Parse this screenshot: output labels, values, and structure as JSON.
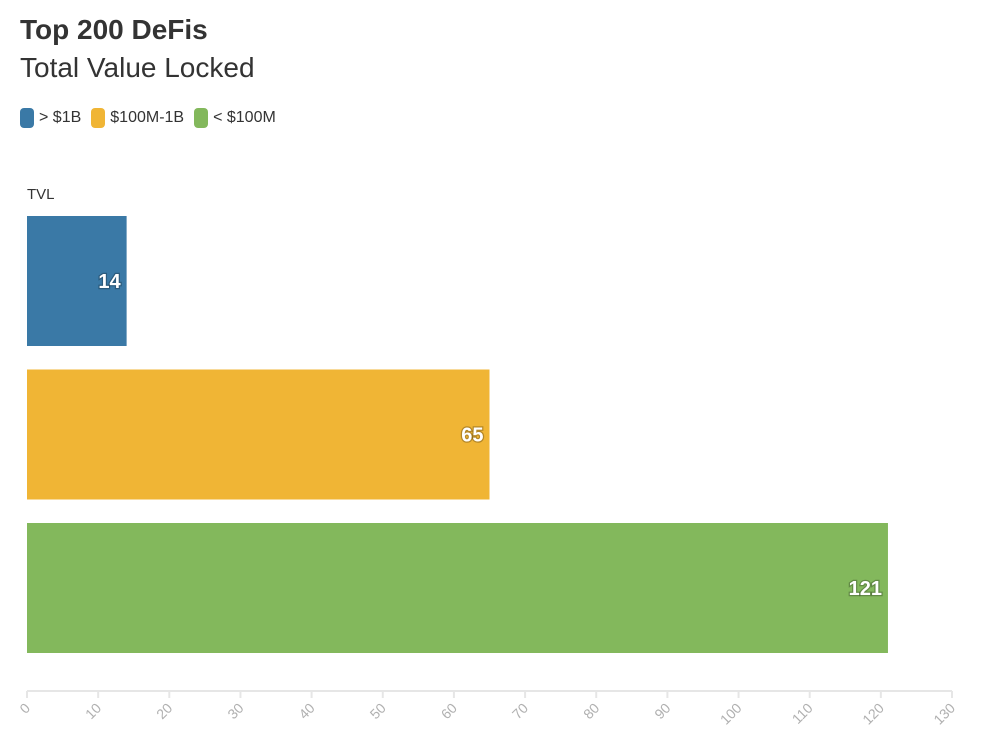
{
  "header": {
    "title": "Top 200 DeFis",
    "subtitle": "Total Value Locked"
  },
  "legend": {
    "items": [
      {
        "label": "> $1B",
        "color": "#3a79a6"
      },
      {
        "label": "$100M-1B",
        "color": "#f0b535"
      },
      {
        "label": "< $100M",
        "color": "#83b85c"
      }
    ]
  },
  "chart_data": {
    "type": "bar",
    "orientation": "horizontal",
    "title": "Top 200 DeFis",
    "subtitle": "Total Value Locked",
    "category_axis_label": "TVL",
    "series": [
      {
        "name": "> $1B",
        "value": 14,
        "color": "#3a79a6"
      },
      {
        "name": "$100M-1B",
        "value": 65,
        "color": "#f0b535"
      },
      {
        "name": "< $100M",
        "value": 121,
        "color": "#83b85c"
      }
    ],
    "xlim": [
      0,
      130
    ],
    "x_ticks": [
      0,
      10,
      20,
      30,
      40,
      50,
      60,
      70,
      80,
      90,
      100,
      110,
      120,
      130
    ],
    "grid": false,
    "legend_position": "top-left"
  }
}
